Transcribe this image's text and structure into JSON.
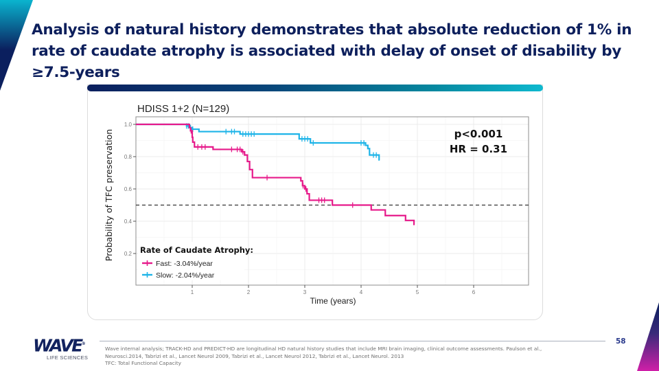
{
  "slide": {
    "title": "Analysis of natural history demonstrates that absolute reduction of 1% in rate of caudate atrophy is associated with delay of onset of disability by ≥7.5-years",
    "page_number": "58",
    "footnote_lines": [
      "Wave internal analysis; TRACK-HD and PREDICT-HD are longitudinal HD natural history studies that include MRI brain imaging, clinical outcome assessments. Paulson et al.,",
      "Neurosci.2014, Tabrizi et al., Lancet Neurol 2009, Tabrizi et al., Lancet Neurol 2012, Tabrizi et al., Lancet Neurol. 2013",
      "TFC: Total Functional Capacity"
    ],
    "logo": {
      "name": "WAVE",
      "trademark": "®",
      "tagline": "LIFE SCIENCES"
    },
    "colors": {
      "title": "#0d1f5c",
      "fast_series": "#e6198a",
      "slow_series": "#1eb4e8",
      "accent_dark": "#0b1f5e",
      "accent_light": "#0fb9cf"
    }
  },
  "chart_data": {
    "type": "line",
    "subtype": "kaplan-meier step",
    "title": "HDISS 1+2 (N=129)",
    "xlabel": "Time (years)",
    "ylabel": "Probability of TFC preservation",
    "xlim": [
      0,
      6.9
    ],
    "ylim": [
      0,
      1.03
    ],
    "x_ticks": [
      1,
      2,
      3,
      4,
      5,
      6
    ],
    "x_tick_labels": [
      "1",
      "2",
      "3",
      "4",
      "5",
      "6"
    ],
    "y_ticks": [
      0.2,
      0.4,
      0.6,
      0.8,
      1.0
    ],
    "y_tick_labels": [
      "0.2",
      "0.4",
      "0.6",
      "0.8",
      "1.0"
    ],
    "grid": true,
    "reference_line": {
      "y": 0.5,
      "style": "dashed"
    },
    "annotations": [
      "p<0.001",
      "HR = 0.31"
    ],
    "annotation_position": "top-right",
    "legend": {
      "title": "Rate of Caudate Atrophy:",
      "position": "bottom-left",
      "entries": [
        "Fast:  -3.04%/year",
        "Slow:  -2.04%/year"
      ]
    },
    "series": [
      {
        "name": "Fast: -3.04%/year",
        "color": "#e6198a",
        "steps": [
          [
            0,
            1.0
          ],
          [
            0.95,
            0.98
          ],
          [
            0.97,
            0.96
          ],
          [
            1.0,
            0.92
          ],
          [
            1.01,
            0.89
          ],
          [
            1.04,
            0.86
          ],
          [
            1.37,
            0.845
          ],
          [
            1.88,
            0.83
          ],
          [
            1.93,
            0.81
          ],
          [
            1.98,
            0.77
          ],
          [
            2.02,
            0.72
          ],
          [
            2.07,
            0.67
          ],
          [
            2.93,
            0.65
          ],
          [
            2.96,
            0.62
          ],
          [
            3.0,
            0.6
          ],
          [
            3.04,
            0.57
          ],
          [
            3.08,
            0.53
          ],
          [
            3.49,
            0.5
          ],
          [
            4.18,
            0.47
          ],
          [
            4.43,
            0.435
          ],
          [
            4.79,
            0.405
          ],
          [
            4.94,
            0.38
          ]
        ],
        "censor_times": [
          0.98,
          1.1,
          1.17,
          1.23,
          1.7,
          1.8,
          1.85,
          1.9,
          2.33,
          2.97,
          3.02,
          3.25,
          3.3,
          3.35,
          3.85
        ]
      },
      {
        "name": "Slow: -2.04%/year",
        "color": "#1eb4e8",
        "steps": [
          [
            0,
            1.0
          ],
          [
            0.9,
            0.99
          ],
          [
            0.95,
            0.98
          ],
          [
            1.0,
            0.97
          ],
          [
            1.12,
            0.955
          ],
          [
            1.85,
            0.94
          ],
          [
            2.9,
            0.91
          ],
          [
            3.1,
            0.885
          ],
          [
            4.08,
            0.87
          ],
          [
            4.12,
            0.85
          ],
          [
            4.15,
            0.81
          ],
          [
            4.32,
            0.78
          ]
        ],
        "end_time": 4.32,
        "censor_times": [
          0.9,
          0.93,
          0.97,
          1.01,
          1.6,
          1.7,
          1.75,
          1.9,
          1.95,
          2.0,
          2.05,
          2.1,
          2.95,
          3.0,
          3.05,
          3.15,
          4.0,
          4.05,
          4.22,
          4.27
        ]
      }
    ]
  }
}
